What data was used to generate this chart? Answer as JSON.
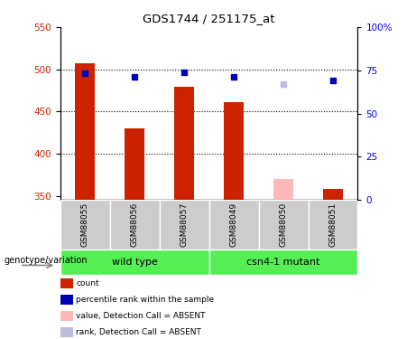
{
  "title": "GDS1744 / 251175_at",
  "samples": [
    "GSM88055",
    "GSM88056",
    "GSM88057",
    "GSM88049",
    "GSM88050",
    "GSM88051"
  ],
  "bar_values": [
    507,
    430,
    479,
    461,
    null,
    358
  ],
  "bar_color_present": "#cc2200",
  "bar_color_absent": "#ffb8b8",
  "absent_bar_value": 370,
  "absent_bar_index": 4,
  "rank_values": [
    73.5,
    71.5,
    74,
    71.5,
    null,
    69
  ],
  "rank_absent_value": 67,
  "rank_absent_index": 4,
  "rank_color_present": "#0000bb",
  "rank_color_absent": "#bbbbdd",
  "ymin": 345,
  "ymax": 550,
  "yticks": [
    350,
    400,
    450,
    500,
    550
  ],
  "y2min": 0,
  "y2max": 100,
  "y2ticks": [
    0,
    25,
    50,
    75,
    100
  ],
  "y2ticklabels": [
    "0",
    "25",
    "50",
    "75",
    "100%"
  ],
  "dotted_lines": [
    500,
    450,
    400
  ],
  "bar_width": 0.4,
  "rank_marker_size": 5,
  "subplot_label": "genotype/variation",
  "group_wt_label": "wild type",
  "group_mut_label": "csn4-1 mutant",
  "group_color": "#55ee55",
  "sample_box_color": "#cccccc",
  "legend_items": [
    {
      "label": "count",
      "color": "#cc2200"
    },
    {
      "label": "percentile rank within the sample",
      "color": "#0000bb"
    },
    {
      "label": "value, Detection Call = ABSENT",
      "color": "#ffb8b8"
    },
    {
      "label": "rank, Detection Call = ABSENT",
      "color": "#bbbbdd"
    }
  ]
}
